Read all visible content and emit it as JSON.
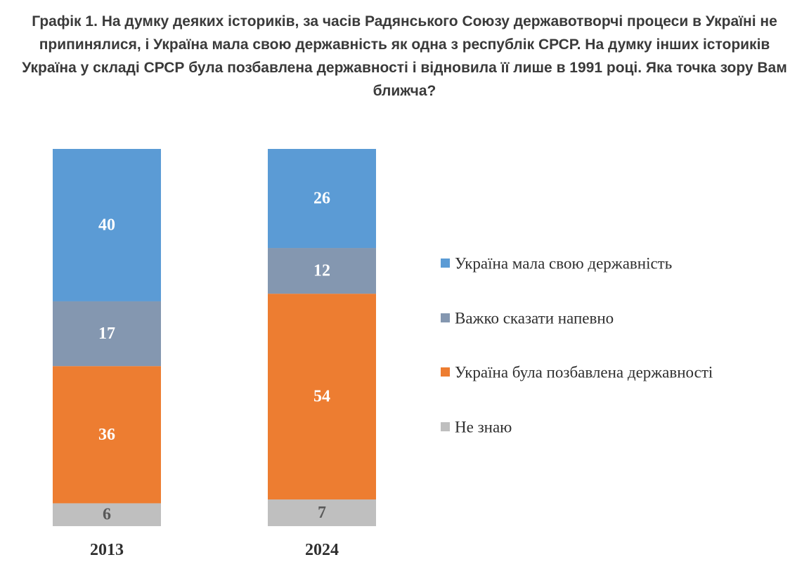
{
  "chart_data": {
    "type": "bar",
    "stacked": true,
    "percent": true,
    "title": "Графік 1. На думку деяких істориків, за часів Радянського Союзу державотворчі процеси в Україні не припинялися, і Україна мала свою державність як одна з республік СРСР. На думку інших істориків Україна у складі СРСР була позбавлена державності і відновила її лише в 1991 році. Яка точка зору Вам ближча?",
    "categories": [
      "2013",
      "2024"
    ],
    "series": [
      {
        "name": "Не знаю",
        "values": [
          6,
          7
        ],
        "color": "#bfbfbf",
        "label_color": "#595959"
      },
      {
        "name": "Україна була позбавлена державності",
        "values": [
          36,
          54
        ],
        "color": "#ed7d31",
        "label_color": "#ffffff"
      },
      {
        "name": "Важко сказати напевно",
        "values": [
          17,
          12
        ],
        "color": "#8497b0",
        "label_color": "#ffffff"
      },
      {
        "name": "Україна мала свою державність",
        "values": [
          40,
          26
        ],
        "color": "#5b9bd5",
        "label_color": "#ffffff"
      }
    ],
    "legend_order": [
      "Україна мала свою державність",
      "Важко сказати напевно",
      "Україна була позбавлена державності",
      "Не знаю"
    ],
    "legend_position": "right",
    "xlabel": "",
    "ylabel": "",
    "grid": false,
    "axes_visible": false
  }
}
